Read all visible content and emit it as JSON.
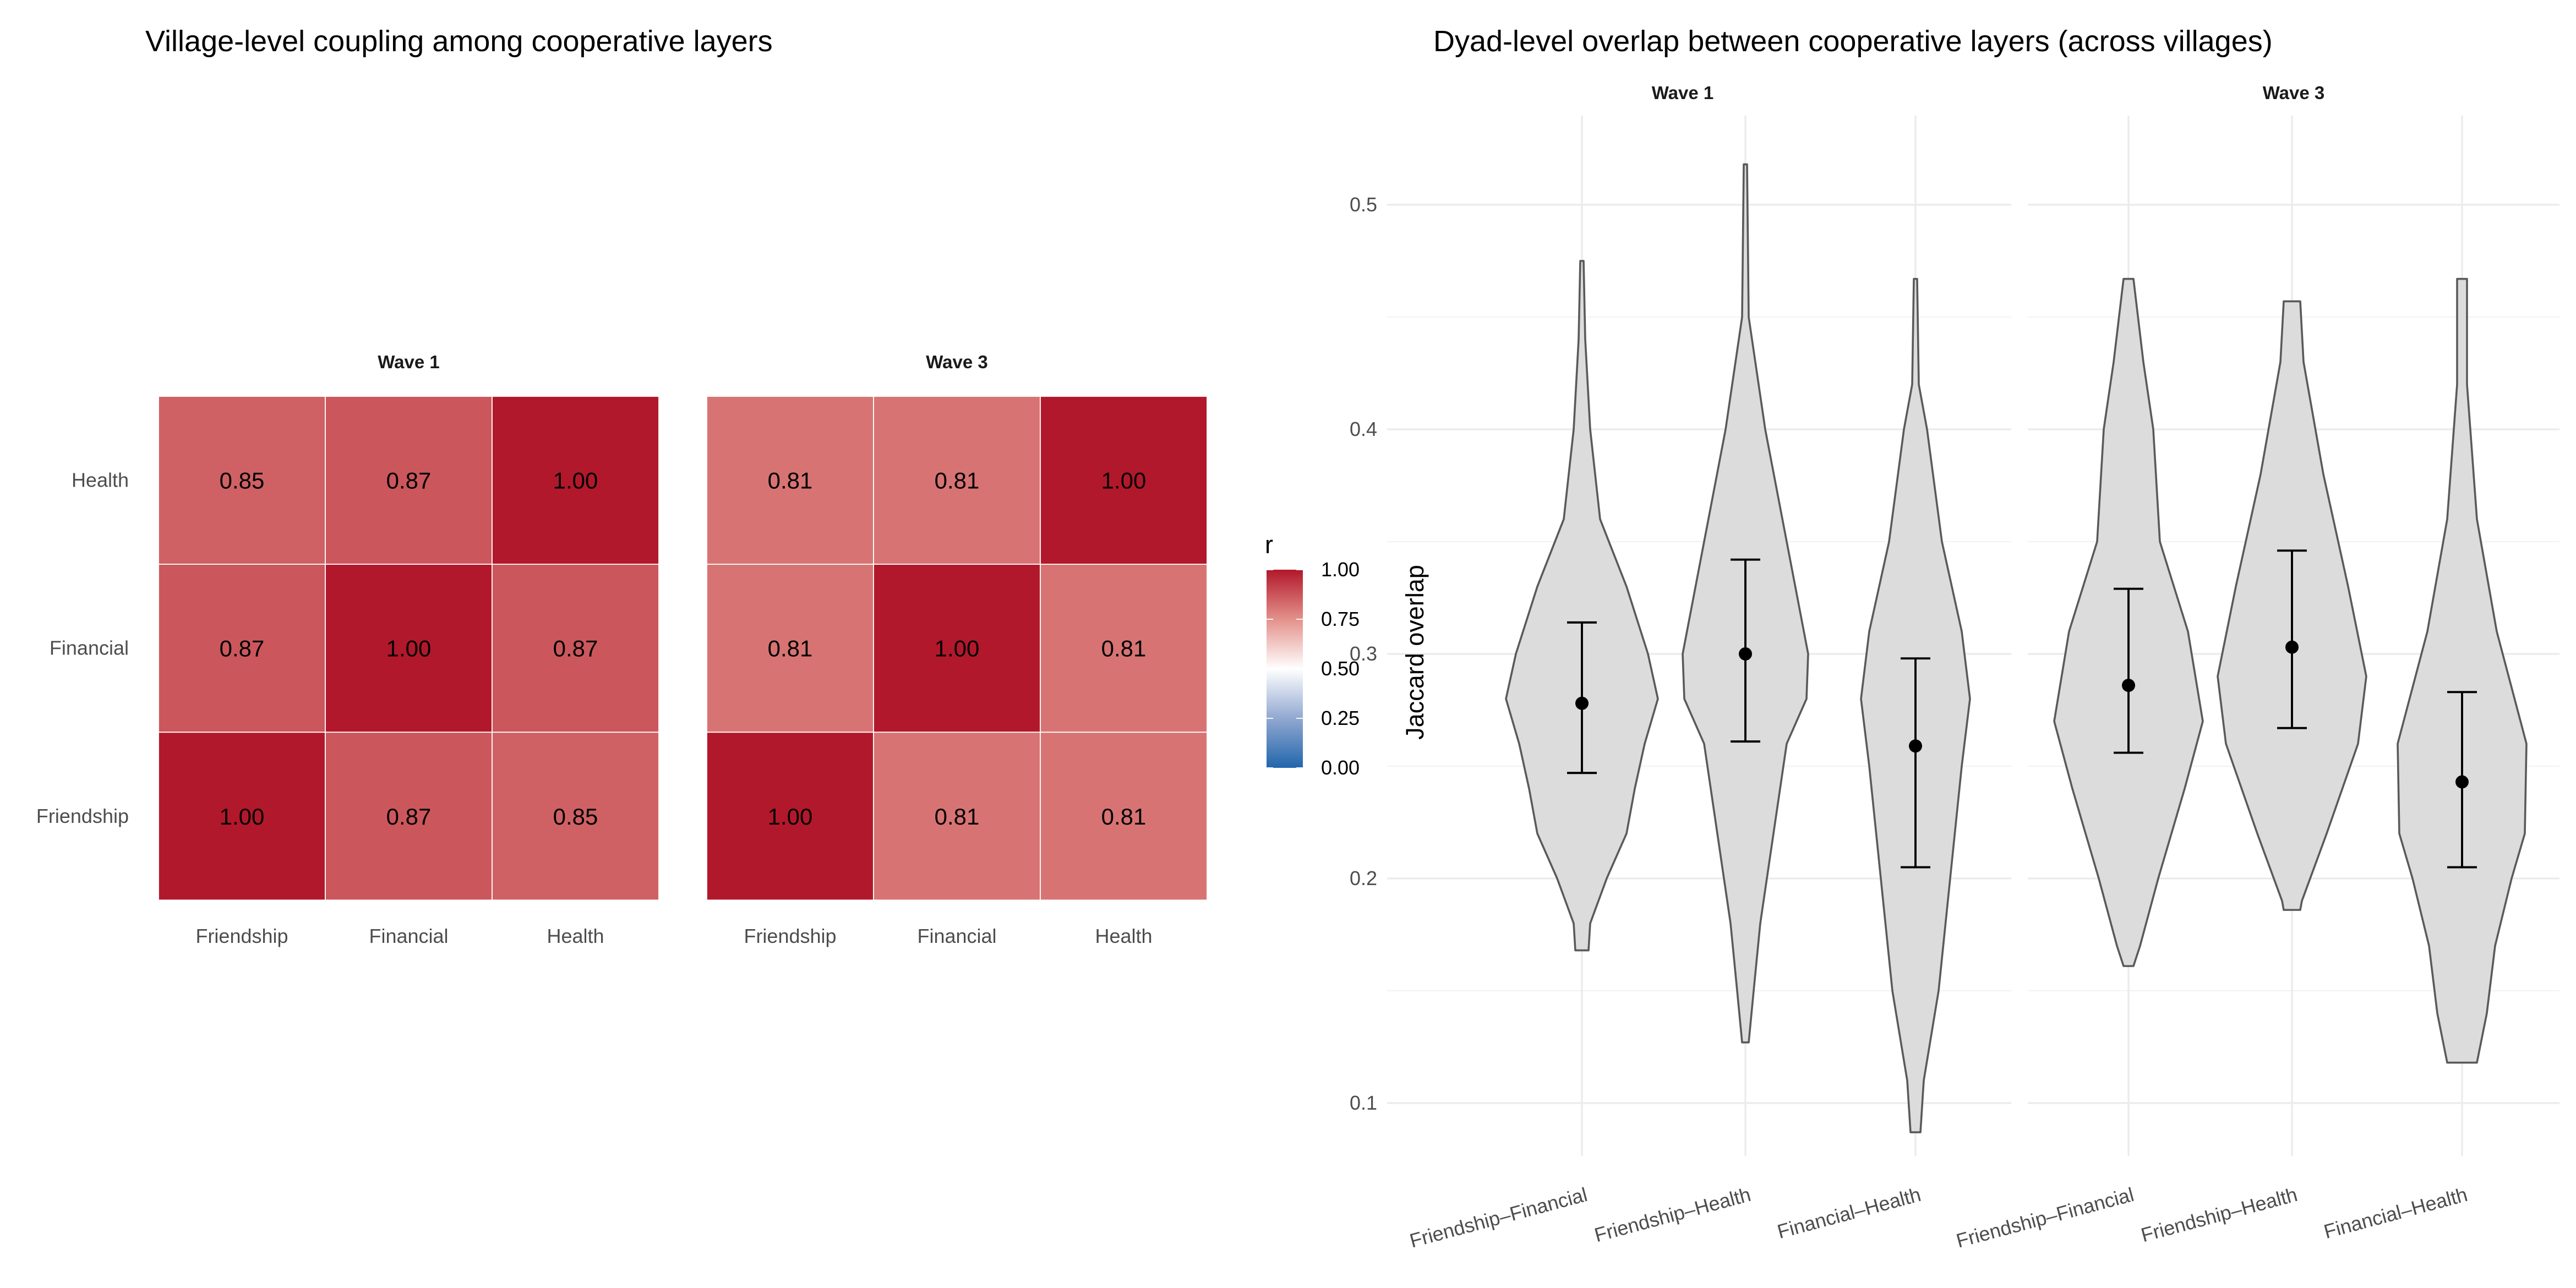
{
  "chart_data": [
    {
      "type": "heatmap",
      "title": "Village-level coupling among cooperative layers",
      "facets": [
        "Wave 1",
        "Wave 3"
      ],
      "x_categories": [
        "Friendship",
        "Financial",
        "Health"
      ],
      "y_categories": [
        "Friendship",
        "Financial",
        "Health"
      ],
      "values": {
        "Wave 1": [
          [
            1.0,
            0.87,
            0.85
          ],
          [
            0.87,
            1.0,
            0.87
          ],
          [
            0.85,
            0.87,
            1.0
          ]
        ],
        "Wave 3": [
          [
            1.0,
            0.81,
            0.81
          ],
          [
            0.81,
            1.0,
            0.81
          ],
          [
            0.81,
            0.81,
            1.0
          ]
        ]
      },
      "value_labels": {
        "Wave 1": [
          [
            "1.00",
            "0.87",
            "0.85"
          ],
          [
            "0.87",
            "1.00",
            "0.87"
          ],
          [
            "0.85",
            "0.87",
            "1.00"
          ]
        ],
        "Wave 3": [
          [
            "1.00",
            "0.81",
            "0.81"
          ],
          [
            "0.81",
            "1.00",
            "0.81"
          ],
          [
            "0.81",
            "0.81",
            "1.00"
          ]
        ]
      },
      "legend": {
        "title": "r",
        "position": "right",
        "ticks": [
          "1.00",
          "0.75",
          "0.50",
          "0.25",
          "0.00"
        ],
        "range": [
          0,
          1
        ],
        "colors": {
          "low": "#2166ac",
          "mid": "#ffffff",
          "high": "#b2182b"
        }
      }
    },
    {
      "type": "violin",
      "title": "Dyad-level overlap between cooperative layers (across villages)",
      "ylabel": "Jaccard overlap",
      "xlabel": "",
      "ylim": [
        0.075,
        0.53
      ],
      "yticks": [
        "0.1",
        "0.2",
        "0.3",
        "0.4",
        "0.5"
      ],
      "grid": true,
      "fill_color": "#dcdcdc",
      "outline_color": "#5a5a5a",
      "facets": [
        {
          "name": "Wave 1",
          "categories": [
            "Friendship–Financial",
            "Friendship–Health",
            "Financial–Health"
          ],
          "mean": [
            0.278,
            0.3,
            0.259
          ],
          "ci_low": [
            0.247,
            0.261,
            0.205
          ],
          "ci_high": [
            0.314,
            0.342,
            0.298
          ],
          "min": [
            0.168,
            0.127,
            0.087
          ],
          "max": [
            0.475,
            0.518,
            0.467
          ]
        },
        {
          "name": "Wave 3",
          "categories": [
            "Friendship–Financial",
            "Friendship–Health",
            "Financial–Health"
          ],
          "mean": [
            0.286,
            0.303,
            0.243
          ],
          "ci_low": [
            0.256,
            0.267,
            0.205
          ],
          "ci_high": [
            0.329,
            0.346,
            0.283
          ],
          "min": [
            0.161,
            0.186,
            0.118
          ],
          "max": [
            0.467,
            0.457,
            0.467
          ]
        }
      ]
    }
  ]
}
